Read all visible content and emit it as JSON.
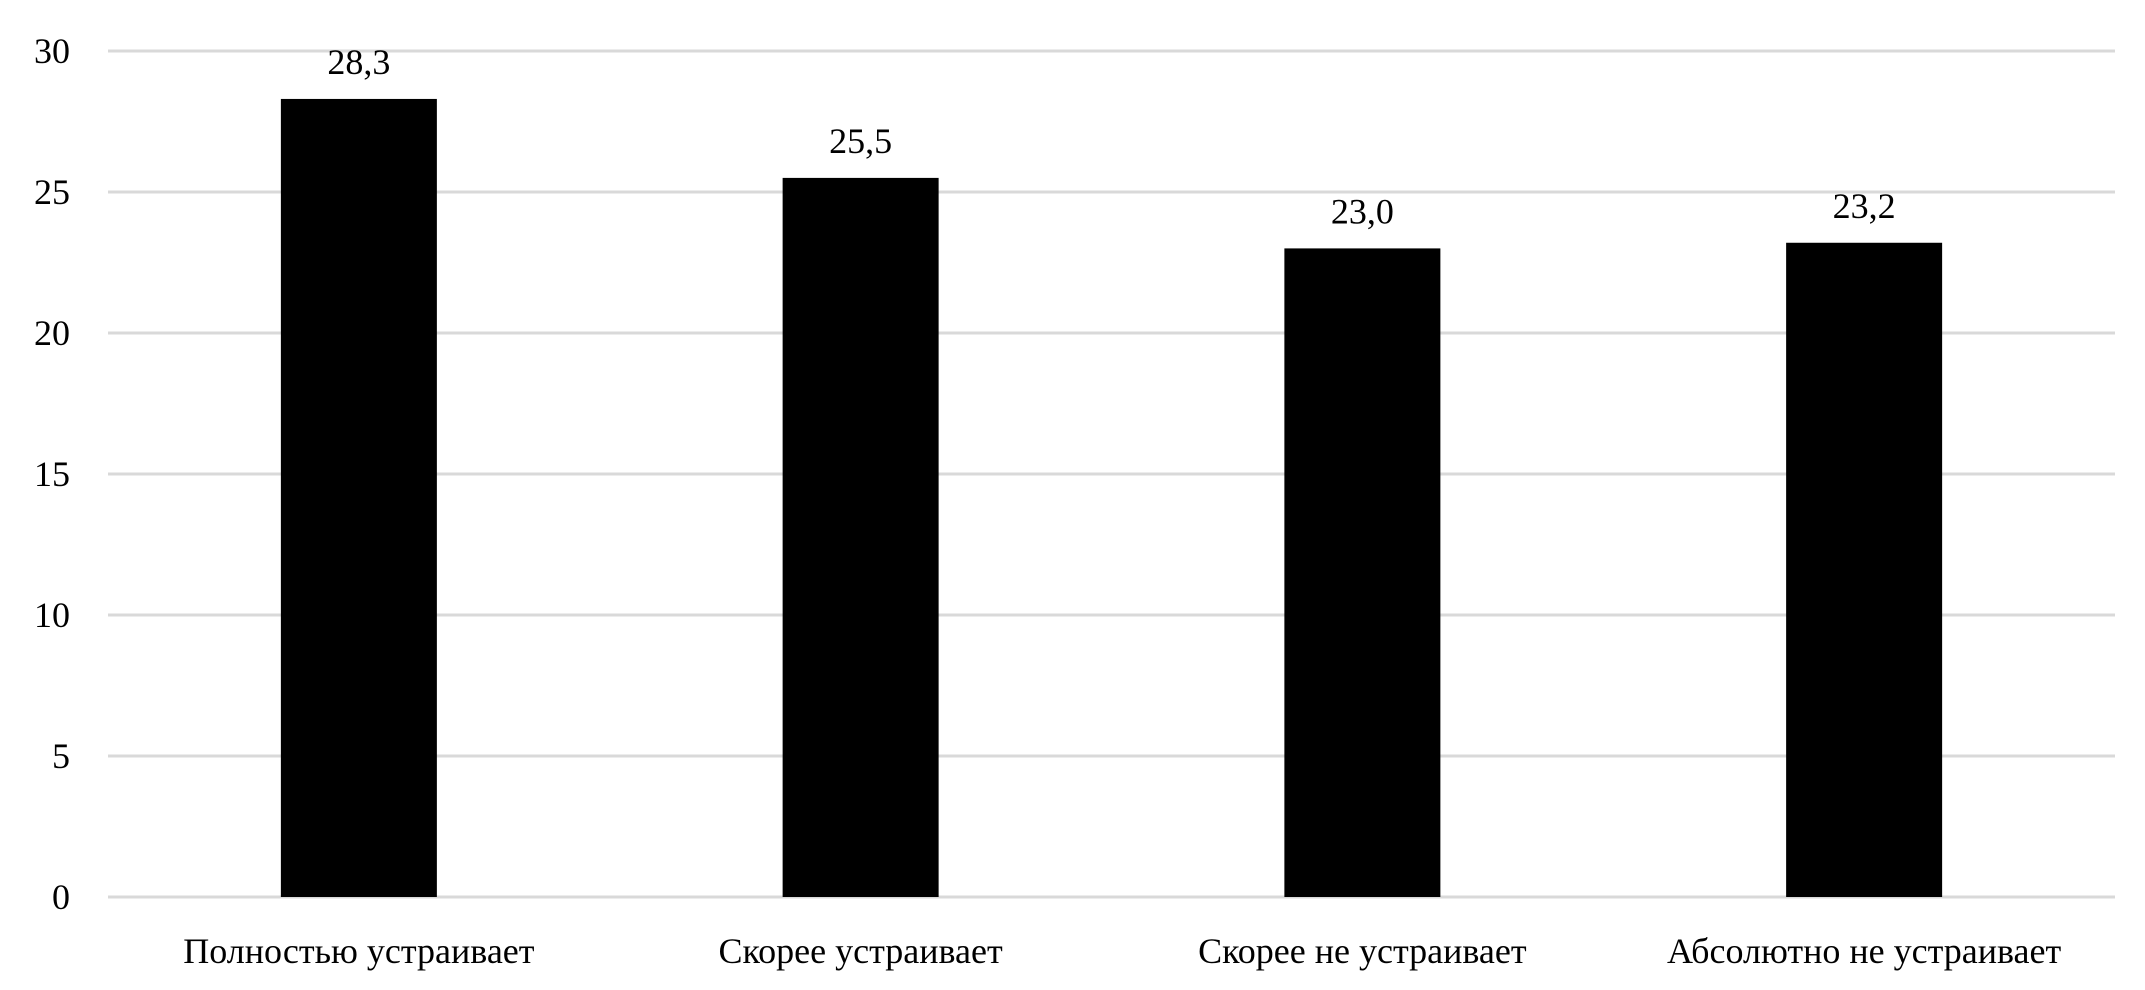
{
  "chart_data": {
    "type": "bar",
    "title": "",
    "xlabel": "",
    "ylabel": "",
    "categories": [
      "Полностью устраивает",
      "Скорее устраивает",
      "Скорее не устраивает",
      "Абсолютно не устраивает"
    ],
    "values": [
      28.3,
      25.5,
      23.0,
      23.2
    ],
    "data_labels": [
      "28,3",
      "25,5",
      "23,0",
      "23,2"
    ],
    "ylim": [
      0,
      30
    ],
    "yticks": [
      0,
      5,
      10,
      15,
      20,
      25,
      30
    ],
    "ytick_labels": [
      "0",
      "5",
      "10",
      "15",
      "20",
      "25",
      "30"
    ],
    "grid": true,
    "legend": "none",
    "bar_color": "#000000",
    "grid_color": "#d9d9d9"
  }
}
